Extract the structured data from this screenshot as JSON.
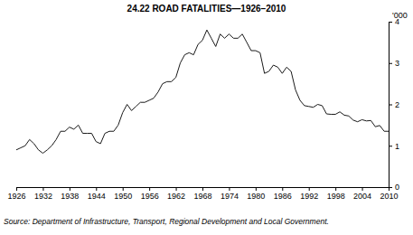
{
  "chart_data": {
    "type": "line",
    "title": "24.22 ROAD FATALITIES—1926–2010",
    "ylabel": "'000",
    "source": "Source: Department of Infrastructure, Transport, Regional Development and Local Government.",
    "color": "#1a1a1a",
    "x": [
      1926,
      1927,
      1928,
      1929,
      1930,
      1931,
      1932,
      1933,
      1934,
      1935,
      1936,
      1937,
      1938,
      1939,
      1940,
      1941,
      1942,
      1943,
      1944,
      1945,
      1946,
      1947,
      1948,
      1949,
      1950,
      1951,
      1952,
      1953,
      1954,
      1955,
      1956,
      1957,
      1958,
      1959,
      1960,
      1961,
      1962,
      1963,
      1964,
      1965,
      1966,
      1967,
      1968,
      1969,
      1970,
      1971,
      1972,
      1973,
      1974,
      1975,
      1976,
      1977,
      1978,
      1979,
      1980,
      1981,
      1982,
      1983,
      1984,
      1985,
      1986,
      1987,
      1988,
      1989,
      1990,
      1991,
      1992,
      1993,
      1994,
      1995,
      1996,
      1997,
      1998,
      1999,
      2000,
      2001,
      2002,
      2003,
      2004,
      2005,
      2006,
      2007,
      2008,
      2009,
      2010
    ],
    "values": [
      0.9,
      0.95,
      1.0,
      1.15,
      1.05,
      0.9,
      0.82,
      0.9,
      1.0,
      1.15,
      1.35,
      1.35,
      1.45,
      1.4,
      1.5,
      1.3,
      1.3,
      1.3,
      1.1,
      1.05,
      1.3,
      1.35,
      1.35,
      1.5,
      1.8,
      2.0,
      1.85,
      1.95,
      2.05,
      2.05,
      2.1,
      2.15,
      2.3,
      2.5,
      2.55,
      2.55,
      2.65,
      3.0,
      3.2,
      3.25,
      3.2,
      3.45,
      3.55,
      3.8,
      3.6,
      3.4,
      3.7,
      3.6,
      3.7,
      3.6,
      3.6,
      3.7,
      3.5,
      3.3,
      3.3,
      3.25,
      2.75,
      2.8,
      2.95,
      2.9,
      2.75,
      2.9,
      2.8,
      2.35,
      2.1,
      1.97,
      1.95,
      1.93,
      2.0,
      1.97,
      1.77,
      1.76,
      1.76,
      1.82,
      1.74,
      1.72,
      1.62,
      1.58,
      1.63,
      1.6,
      1.61,
      1.46,
      1.49,
      1.35,
      1.35
    ],
    "xlim": [
      1926,
      2010
    ],
    "xticks": [
      1926,
      1932,
      1938,
      1944,
      1950,
      1956,
      1962,
      1968,
      1974,
      1980,
      1986,
      1992,
      1998,
      2004,
      2010
    ],
    "ylim": [
      0,
      4
    ],
    "yticks": [
      0,
      1,
      2,
      3,
      4
    ],
    "grid": false
  }
}
